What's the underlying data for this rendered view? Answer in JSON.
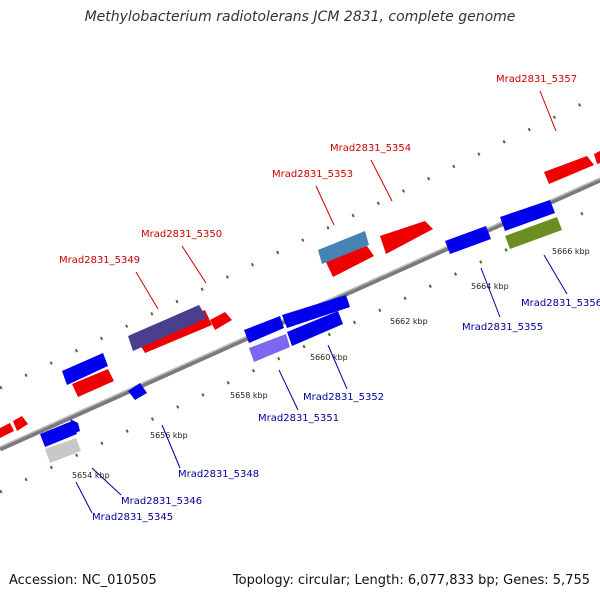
{
  "title": "Methylobacterium radiotolerans JCM 2831, complete genome",
  "footer": {
    "accession": "Accession: NC_010505",
    "summary": "Topology: circular; Length: 6,077,833 bp; Genes: 5,755"
  },
  "colors": {
    "forward_strand": "#ff0000",
    "reverse_strand": "#0000ff",
    "forward_label": "#cc0000",
    "reverse_label": "#000099",
    "backbone": "#808080",
    "ticks": "#2e7d1e"
  },
  "scale_labels": [
    "5654 kbp",
    "5656 kbp",
    "5658 kbp",
    "5660 kbp",
    "5662 kbp",
    "5664 kbp",
    "5666 kbp"
  ],
  "gene_labels": {
    "g5357": "Mrad2831_5357",
    "g5354": "Mrad2831_5354",
    "g5353": "Mrad2831_5353",
    "g5350": "Mrad2831_5350",
    "g5349": "Mrad2831_5349",
    "g5356": "Mrad2831_5356",
    "g5355": "Mrad2831_5355",
    "g5352": "Mrad2831_5352",
    "g5351": "Mrad2831_5351",
    "g5348": "Mrad2831_5348",
    "g5346": "Mrad2831_5346",
    "g5345": "Mrad2831_5345"
  }
}
